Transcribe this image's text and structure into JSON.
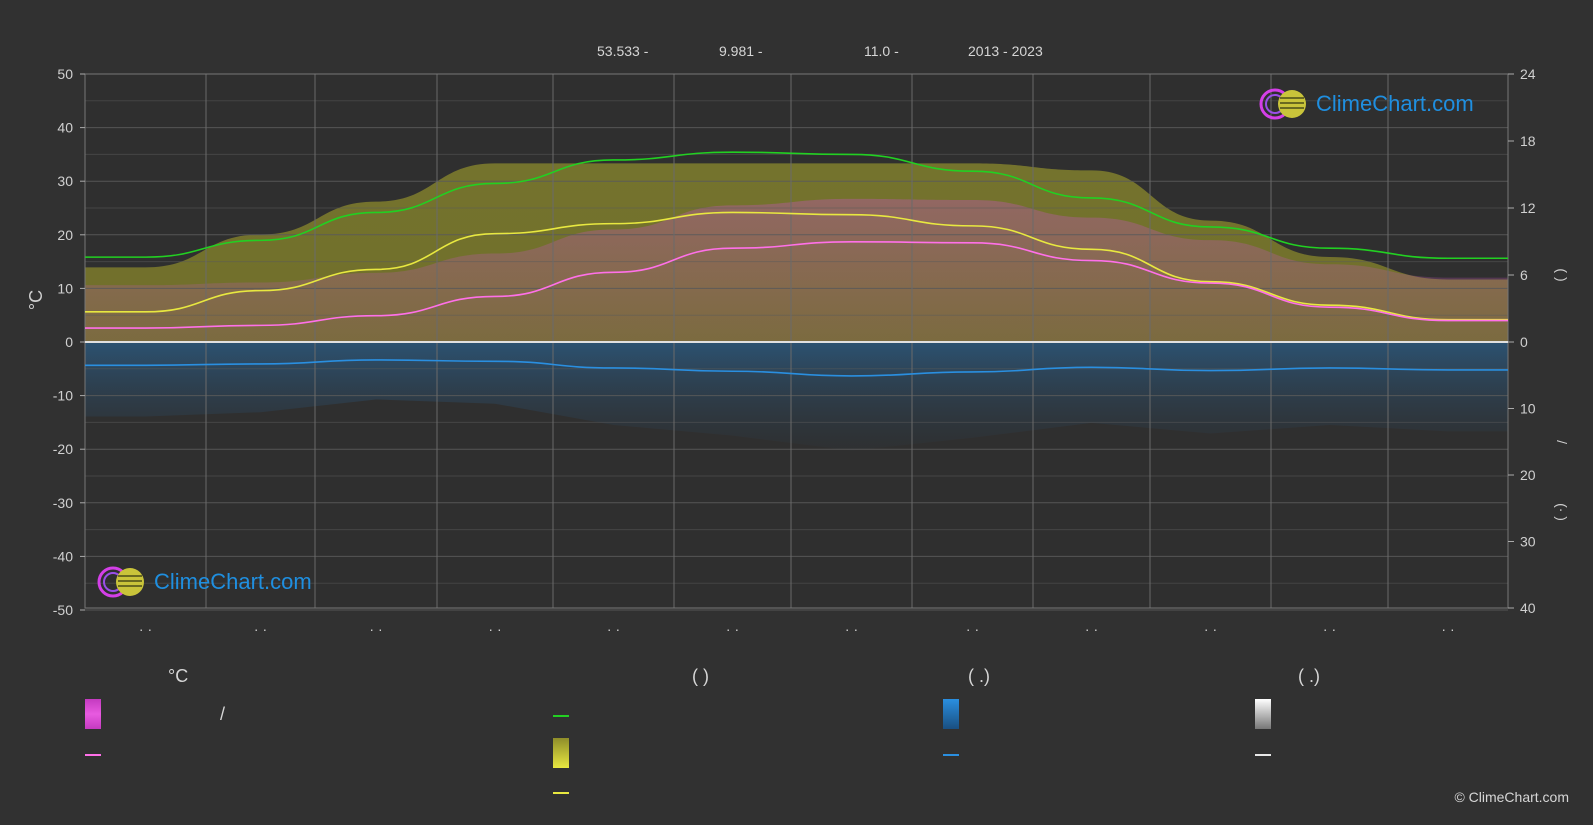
{
  "header": {
    "lat": "53.533 -",
    "lon": "9.981 -",
    "elev": "11.0 -",
    "years": "2013 - 2023"
  },
  "axes": {
    "left_label": "°C",
    "left_ticks": [
      "50",
      "40",
      "30",
      "20",
      "10",
      "0",
      "-10",
      "-20",
      "-30",
      "-40",
      "-50"
    ],
    "right_ticks_top": [
      "24",
      "18",
      "12",
      "6",
      "0"
    ],
    "right_ticks_bottom": [
      "10",
      "20",
      "30",
      "40"
    ],
    "right_label_top": "(   )",
    "right_label_bottom": "/",
    "right_label_bottom2": "(·   )",
    "month_labels": [
      "· ·",
      "· ·",
      "· ·",
      "· ·",
      "· ·",
      "· ·",
      "· ·",
      "· ·",
      "· ·",
      "· ·",
      "· ·",
      "· ·"
    ]
  },
  "legend": {
    "col1_title": "°C",
    "col1_item1_extra": "/",
    "col2_title": "(          )",
    "col3_title": "(   .)",
    "col4_title": "(   .)"
  },
  "logo_text": "ClimeChart.com",
  "copyright": "© ClimeChart.com",
  "colors": {
    "background": "#313131",
    "daylight": "#22d022",
    "sunshine": "#e8e840",
    "temp_mean": "#ff70e8",
    "precip": "#2a8fe0",
    "snow": "#e8e8e8"
  },
  "chart_data": {
    "type": "line",
    "title": "",
    "x": [
      "Jan",
      "Feb",
      "Mar",
      "Apr",
      "May",
      "Jun",
      "Jul",
      "Aug",
      "Sep",
      "Oct",
      "Nov",
      "Dec"
    ],
    "ylim_left": [
      -50,
      50
    ],
    "ylim_right_top_hours": [
      0,
      24
    ],
    "ylim_right_bottom_mm": [
      0,
      40
    ],
    "grid": true,
    "series": [
      {
        "name": "",
        "axis": "hours",
        "values": [
          7.6,
          9.1,
          11.6,
          14.2,
          16.3,
          17.0,
          16.8,
          15.3,
          12.9,
          10.3,
          8.4,
          7.5
        ]
      },
      {
        "name": "",
        "axis": "hours",
        "values": [
          2.7,
          4.6,
          6.5,
          9.7,
          10.6,
          11.6,
          11.4,
          10.4,
          8.3,
          5.4,
          3.3,
          2.0
        ]
      },
      {
        "name": "",
        "axis": "celsius",
        "values": [
          2.6,
          3.1,
          4.9,
          8.5,
          13.0,
          17.5,
          18.7,
          18.5,
          15.2,
          11.0,
          6.5,
          4.0
        ]
      },
      {
        "name": "",
        "axis": "mm",
        "values": [
          3.5,
          3.3,
          2.7,
          2.9,
          3.9,
          4.4,
          5.1,
          4.5,
          3.8,
          4.3,
          3.9,
          4.2
        ]
      }
    ]
  }
}
